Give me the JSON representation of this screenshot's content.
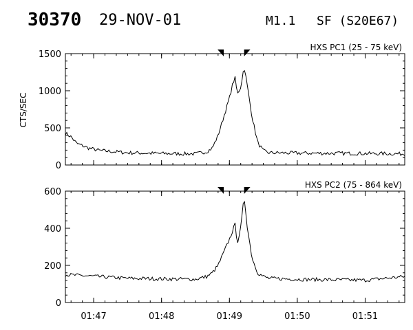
{
  "header": {
    "event_id": "30370",
    "date": "29-NOV-01",
    "goes_class": "M1.1",
    "flare": "SF (S20E67)"
  },
  "chart_data": {
    "type": "line",
    "x_ticks": [
      "01:47",
      "01:48",
      "01:49",
      "01:50",
      "01:51"
    ],
    "xlim": [
      "01:46:35",
      "01:51:35"
    ],
    "markers": [
      "01:48:55",
      "01:49:13"
    ],
    "ylabel": "CTS/SEC",
    "panels": [
      {
        "title": "HXS PC1 (25 - 75 keV)",
        "ylim": [
          0,
          1500
        ],
        "y_ticks": [
          0,
          500,
          1000,
          1500
        ],
        "baseline": 150,
        "noise": 25,
        "x": [
          "01:46:35",
          "01:46:40",
          "01:46:45",
          "01:46:55",
          "01:47:05",
          "01:47:30",
          "01:48:00",
          "01:48:30",
          "01:48:40",
          "01:48:45",
          "01:48:50",
          "01:48:55",
          "01:49:00",
          "01:49:03",
          "01:49:05",
          "01:49:07",
          "01:49:10",
          "01:49:13",
          "01:49:16",
          "01:49:20",
          "01:49:25",
          "01:49:30",
          "01:49:35",
          "01:50:00",
          "01:51:00",
          "01:51:35"
        ],
        "values": [
          430,
          380,
          290,
          230,
          195,
          165,
          155,
          150,
          180,
          230,
          400,
          650,
          900,
          1100,
          1170,
          950,
          1050,
          1330,
          1050,
          650,
          300,
          190,
          165,
          160,
          155,
          150
        ]
      },
      {
        "title": "HXS PC2 (75 - 864 keV)",
        "ylim": [
          0,
          600
        ],
        "y_ticks": [
          0,
          200,
          400,
          600
        ],
        "baseline": 120,
        "noise": 10,
        "x": [
          "01:46:35",
          "01:47:30",
          "01:48:30",
          "01:48:40",
          "01:48:45",
          "01:48:50",
          "01:48:55",
          "01:49:00",
          "01:49:03",
          "01:49:05",
          "01:49:07",
          "01:49:10",
          "01:49:13",
          "01:49:16",
          "01:49:20",
          "01:49:25",
          "01:49:30",
          "01:49:35",
          "01:50:00",
          "01:51:00",
          "01:51:35"
        ],
        "values": [
          150,
          130,
          125,
          140,
          160,
          200,
          270,
          340,
          390,
          420,
          320,
          400,
          570,
          400,
          240,
          160,
          140,
          130,
          125,
          120,
          140
        ]
      }
    ]
  }
}
